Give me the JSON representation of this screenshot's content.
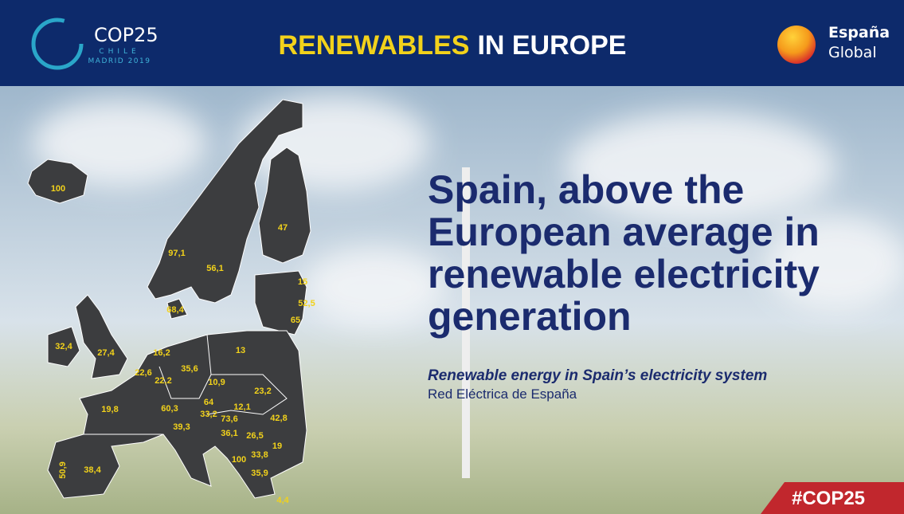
{
  "header": {
    "logo_left": {
      "title": "COP25",
      "country": "CHILE",
      "venue": "MADRID 2019"
    },
    "title": {
      "highlight": "RENEWABLES",
      "rest": "IN EUROPE"
    },
    "logo_right": {
      "line1": "España",
      "line2": "Global"
    }
  },
  "headline": {
    "lines": [
      "Spain, above the",
      "European average in",
      "renewable electricity",
      "generation"
    ]
  },
  "subtitle": "Renewable energy in Spain’s electricity system",
  "source": "Red Eléctrica de España",
  "hashtag": "#COP25",
  "map": {
    "labels": [
      "100",
      "97,1",
      "56,1",
      "47",
      "15",
      "52,5",
      "65",
      "68,4",
      "32,4",
      "27,4",
      "16,2",
      "22,6",
      "22,2",
      "35,6",
      "13",
      "10,9",
      "23,2",
      "19,8",
      "60,3",
      "64",
      "33,2",
      "73,6",
      "12,1",
      "42,8",
      "39,3",
      "36,1",
      "26,5",
      "19",
      "100",
      "33,8",
      "35,9",
      "50,9",
      "38,4",
      "4,4"
    ]
  }
}
